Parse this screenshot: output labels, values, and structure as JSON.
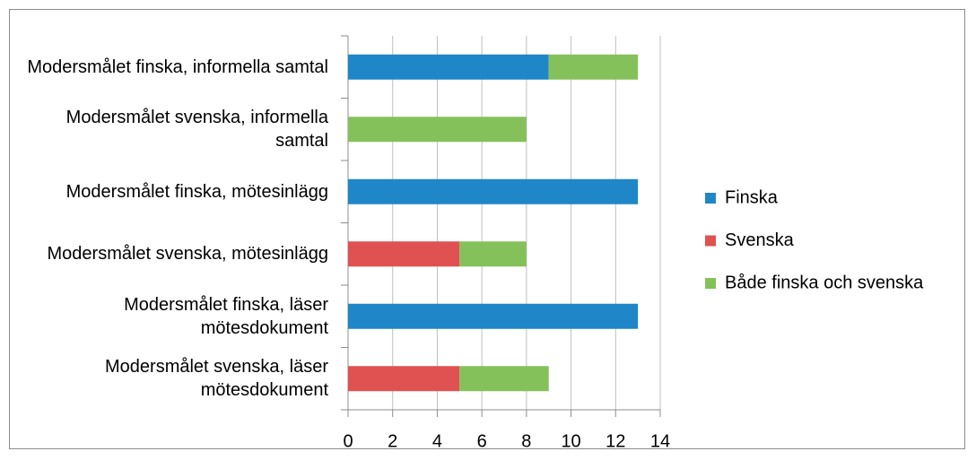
{
  "chart_data": {
    "type": "stacked-barh",
    "categories": [
      "Modersmålet finska, informella samtal",
      "Modersmålet svenska, informella samtal",
      "Modersmålet finska, mötesinlägg",
      "Modersmålet svenska, mötesinlägg",
      "Modersmålet finska, läser mötesdokument",
      "Modersmålet svenska, läser mötesdokument"
    ],
    "series": [
      {
        "name": "Finska",
        "color": "#1f86c8",
        "values": [
          9,
          0,
          13,
          0,
          13,
          0
        ]
      },
      {
        "name": "Svenska",
        "color": "#e05152",
        "values": [
          0,
          0,
          0,
          5,
          0,
          5
        ]
      },
      {
        "name": "Både finska och svenska",
        "color": "#85c15b",
        "values": [
          4,
          8,
          0,
          3,
          0,
          4
        ]
      }
    ],
    "xlim": [
      0,
      14
    ],
    "xticks": [
      0,
      2,
      4,
      6,
      8,
      10,
      12,
      14
    ],
    "grid": true,
    "legend": "right"
  }
}
